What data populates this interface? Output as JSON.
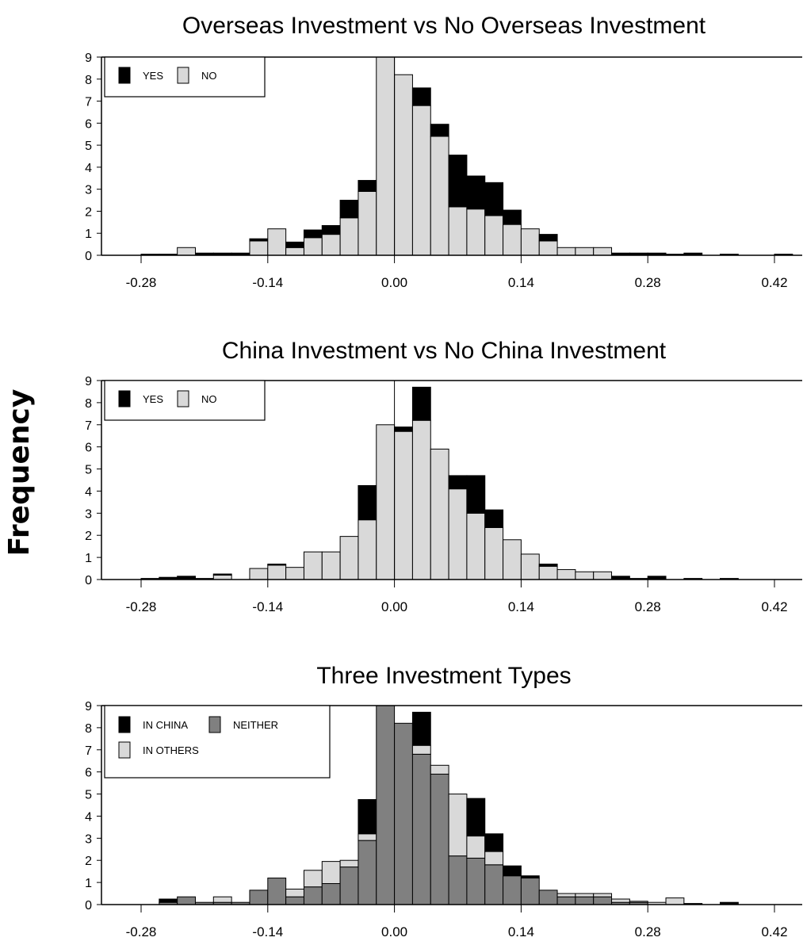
{
  "ylabel": "Frequency",
  "chart_data": [
    {
      "type": "bar",
      "stacked": true,
      "title": "Overseas Investment  vs  No Overseas Investment",
      "xlim": [
        -0.34,
        0.45
      ],
      "ylim": [
        0,
        9
      ],
      "xticks": [
        -0.28,
        -0.14,
        0.0,
        0.14,
        0.28,
        0.42
      ],
      "xtick_labels": [
        "-0.28",
        "-0.14",
        "0.00",
        "0.14",
        "0.28",
        "0.42"
      ],
      "yticks": [
        0,
        1,
        2,
        3,
        4,
        5,
        6,
        7,
        8,
        9
      ],
      "ytick_labels": [
        "0",
        "1",
        "2",
        "3",
        "4",
        "5",
        "6",
        "7",
        "8",
        "9"
      ],
      "bin_start": -0.28,
      "bin_width": 0.02,
      "reference_line_x": 0,
      "legend": {
        "placement": "top-left",
        "entries": [
          {
            "label": "YES",
            "color": "#000000"
          },
          {
            "label": "NO",
            "color": "#d9d9d9"
          }
        ]
      },
      "series": [
        {
          "name": "NO",
          "color": "#d9d9d9",
          "values": [
            0,
            0,
            0.35,
            0,
            0,
            0,
            0.65,
            1.2,
            0.35,
            0.8,
            0.95,
            1.7,
            2.9,
            9,
            8.2,
            6.8,
            5.4,
            2.2,
            2.1,
            1.8,
            1.4,
            1.2,
            0.65,
            0.35,
            0.35,
            0.35,
            0,
            0,
            0,
            0,
            0,
            0,
            0,
            0,
            0,
            0,
            0
          ]
        },
        {
          "name": "YES",
          "color": "#000000",
          "values": [
            0.05,
            0.05,
            0,
            0.1,
            0.1,
            0.1,
            0.1,
            0,
            0.25,
            0.35,
            0.4,
            0.8,
            0.5,
            0,
            0,
            0.8,
            0.55,
            2.35,
            1.5,
            1.5,
            0.65,
            0,
            0.3,
            0,
            0,
            0,
            0.1,
            0.1,
            0.1,
            0.05,
            0.1,
            0,
            0.05,
            0,
            0,
            0.05,
            0
          ]
        }
      ]
    },
    {
      "type": "bar",
      "stacked": true,
      "title": "China Investment  vs  No China Investment",
      "xlim": [
        -0.34,
        0.45
      ],
      "ylim": [
        0,
        9
      ],
      "xticks": [
        -0.28,
        -0.14,
        0.0,
        0.14,
        0.28,
        0.42
      ],
      "xtick_labels": [
        "-0.28",
        "-0.14",
        "0.00",
        "0.14",
        "0.28",
        "0.42"
      ],
      "yticks": [
        0,
        1,
        2,
        3,
        4,
        5,
        6,
        7,
        8,
        9
      ],
      "ytick_labels": [
        "0",
        "1",
        "2",
        "3",
        "4",
        "5",
        "6",
        "7",
        "8",
        "9"
      ],
      "bin_start": -0.28,
      "bin_width": 0.02,
      "reference_line_x": 0,
      "legend": {
        "placement": "top-left",
        "entries": [
          {
            "label": "YES",
            "color": "#000000"
          },
          {
            "label": "NO",
            "color": "#d9d9d9"
          }
        ]
      },
      "series": [
        {
          "name": "NO",
          "color": "#d9d9d9",
          "values": [
            0,
            0,
            0,
            0,
            0.2,
            0,
            0.5,
            0.65,
            0.55,
            1.25,
            1.25,
            1.95,
            2.7,
            7,
            6.7,
            7.2,
            5.9,
            4.1,
            3,
            2.35,
            1.8,
            1.15,
            0.6,
            0.45,
            0.35,
            0.35,
            0,
            0,
            0,
            0,
            0,
            0,
            0,
            0,
            0,
            0,
            0
          ]
        },
        {
          "name": "YES",
          "color": "#000000",
          "values": [
            0.05,
            0.1,
            0.15,
            0.05,
            0.05,
            0,
            0,
            0.05,
            0,
            0,
            0,
            0,
            1.55,
            0,
            0.2,
            1.5,
            0,
            0.6,
            1.7,
            0.8,
            0,
            0,
            0.1,
            0,
            0,
            0,
            0.15,
            0.05,
            0.15,
            0,
            0.05,
            0,
            0.05,
            0,
            0,
            0,
            0
          ]
        }
      ]
    },
    {
      "type": "bar",
      "stacked": true,
      "title": "Three Investment Types",
      "xlim": [
        -0.34,
        0.45
      ],
      "ylim": [
        0,
        9
      ],
      "xticks": [
        -0.28,
        -0.14,
        0.0,
        0.14,
        0.28,
        0.42
      ],
      "xtick_labels": [
        "-0.28",
        "-0.14",
        "0.00",
        "0.14",
        "0.28",
        "0.42"
      ],
      "yticks": [
        0,
        1,
        2,
        3,
        4,
        5,
        6,
        7,
        8,
        9
      ],
      "ytick_labels": [
        "0",
        "1",
        "2",
        "3",
        "4",
        "5",
        "6",
        "7",
        "8",
        "9"
      ],
      "bin_start": -0.28,
      "bin_width": 0.02,
      "reference_line_x": null,
      "legend": {
        "placement": "top-left",
        "entries": [
          {
            "label": "IN CHINA",
            "color": "#000000"
          },
          {
            "label": "NEITHER",
            "color": "#808080"
          },
          {
            "label": "IN OTHERS",
            "color": "#d9d9d9"
          }
        ]
      },
      "series": [
        {
          "name": "NEITHER",
          "color": "#808080",
          "values": [
            0,
            0.1,
            0.35,
            0.1,
            0.1,
            0.1,
            0.65,
            1.2,
            0.35,
            0.8,
            0.95,
            1.7,
            2.9,
            9,
            8.2,
            6.8,
            5.9,
            2.2,
            2.1,
            1.8,
            1.3,
            1.2,
            0.65,
            0.35,
            0.35,
            0.35,
            0.1,
            0.1,
            0,
            0,
            0,
            0,
            0,
            0,
            0,
            0,
            0
          ]
        },
        {
          "name": "IN OTHERS",
          "color": "#d9d9d9",
          "values": [
            0,
            0,
            0,
            0,
            0.25,
            0,
            0,
            0,
            0.35,
            0.75,
            1,
            0.3,
            0.3,
            0,
            0,
            0.4,
            0.4,
            2.8,
            1,
            0.6,
            0,
            0,
            0,
            0.15,
            0.15,
            0.15,
            0.15,
            0.05,
            0.1,
            0.3,
            0,
            0,
            0,
            0,
            0,
            0,
            0
          ]
        },
        {
          "name": "IN CHINA",
          "color": "#000000",
          "values": [
            0,
            0.15,
            0,
            0,
            0,
            0,
            0,
            0,
            0,
            0,
            0,
            0,
            1.55,
            0,
            0,
            1.5,
            0,
            0,
            1.7,
            0.8,
            0.45,
            0.1,
            0,
            0,
            0,
            0,
            0,
            0,
            0,
            0,
            0.05,
            0,
            0.1,
            0,
            0,
            0,
            0
          ]
        }
      ]
    }
  ]
}
